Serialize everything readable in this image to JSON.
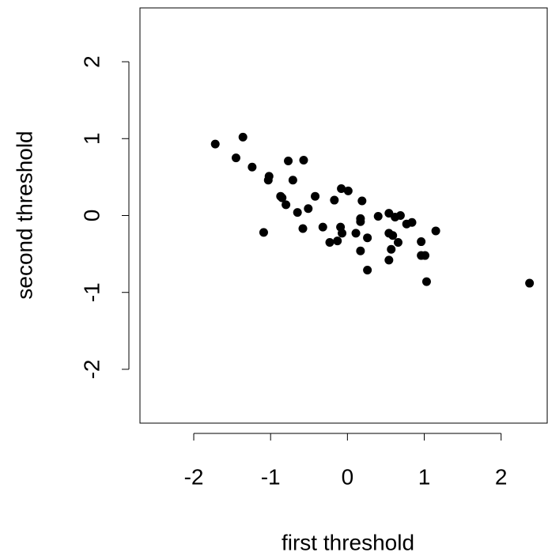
{
  "chart_data": {
    "type": "scatter",
    "xlabel": "first threshold",
    "ylabel": "second threshold",
    "x": [
      -1.72,
      -1.36,
      -1.45,
      -1.24,
      -1.02,
      -1.03,
      -0.77,
      -0.57,
      -0.71,
      -0.87,
      -0.85,
      -0.8,
      -0.65,
      -0.51,
      -0.42,
      -1.09,
      -0.58,
      -0.32,
      -0.17,
      -0.08,
      0.01,
      -0.09,
      -0.07,
      -0.23,
      -0.13,
      0.11,
      0.19,
      0.17,
      0.17,
      0.26,
      0.17,
      0.26,
      0.4,
      0.54,
      0.62,
      0.69,
      0.54,
      0.59,
      0.66,
      0.57,
      0.54,
      0.77,
      0.84,
      0.96,
      0.96,
      1.01,
      1.03,
      1.15,
      2.37
    ],
    "y": [
      0.93,
      1.02,
      0.75,
      0.63,
      0.51,
      0.46,
      0.71,
      0.72,
      0.46,
      0.25,
      0.23,
      0.14,
      0.04,
      0.09,
      0.25,
      -0.22,
      -0.17,
      -0.15,
      0.2,
      0.35,
      0.32,
      -0.15,
      -0.23,
      -0.35,
      -0.33,
      -0.23,
      0.19,
      -0.04,
      -0.08,
      -0.29,
      -0.46,
      -0.71,
      -0.01,
      0.03,
      -0.02,
      0.0,
      -0.23,
      -0.26,
      -0.35,
      -0.44,
      -0.58,
      -0.11,
      -0.09,
      -0.34,
      -0.52,
      -0.52,
      -0.86,
      -0.2,
      -0.88
    ],
    "color": "#000000",
    "xlim": [
      -2.7,
      2.6
    ],
    "ylim": [
      -2.7,
      2.7
    ],
    "xticks": [
      -2,
      -1,
      0,
      1,
      2
    ],
    "yticks": [
      -2,
      -1,
      0,
      1,
      2
    ]
  }
}
